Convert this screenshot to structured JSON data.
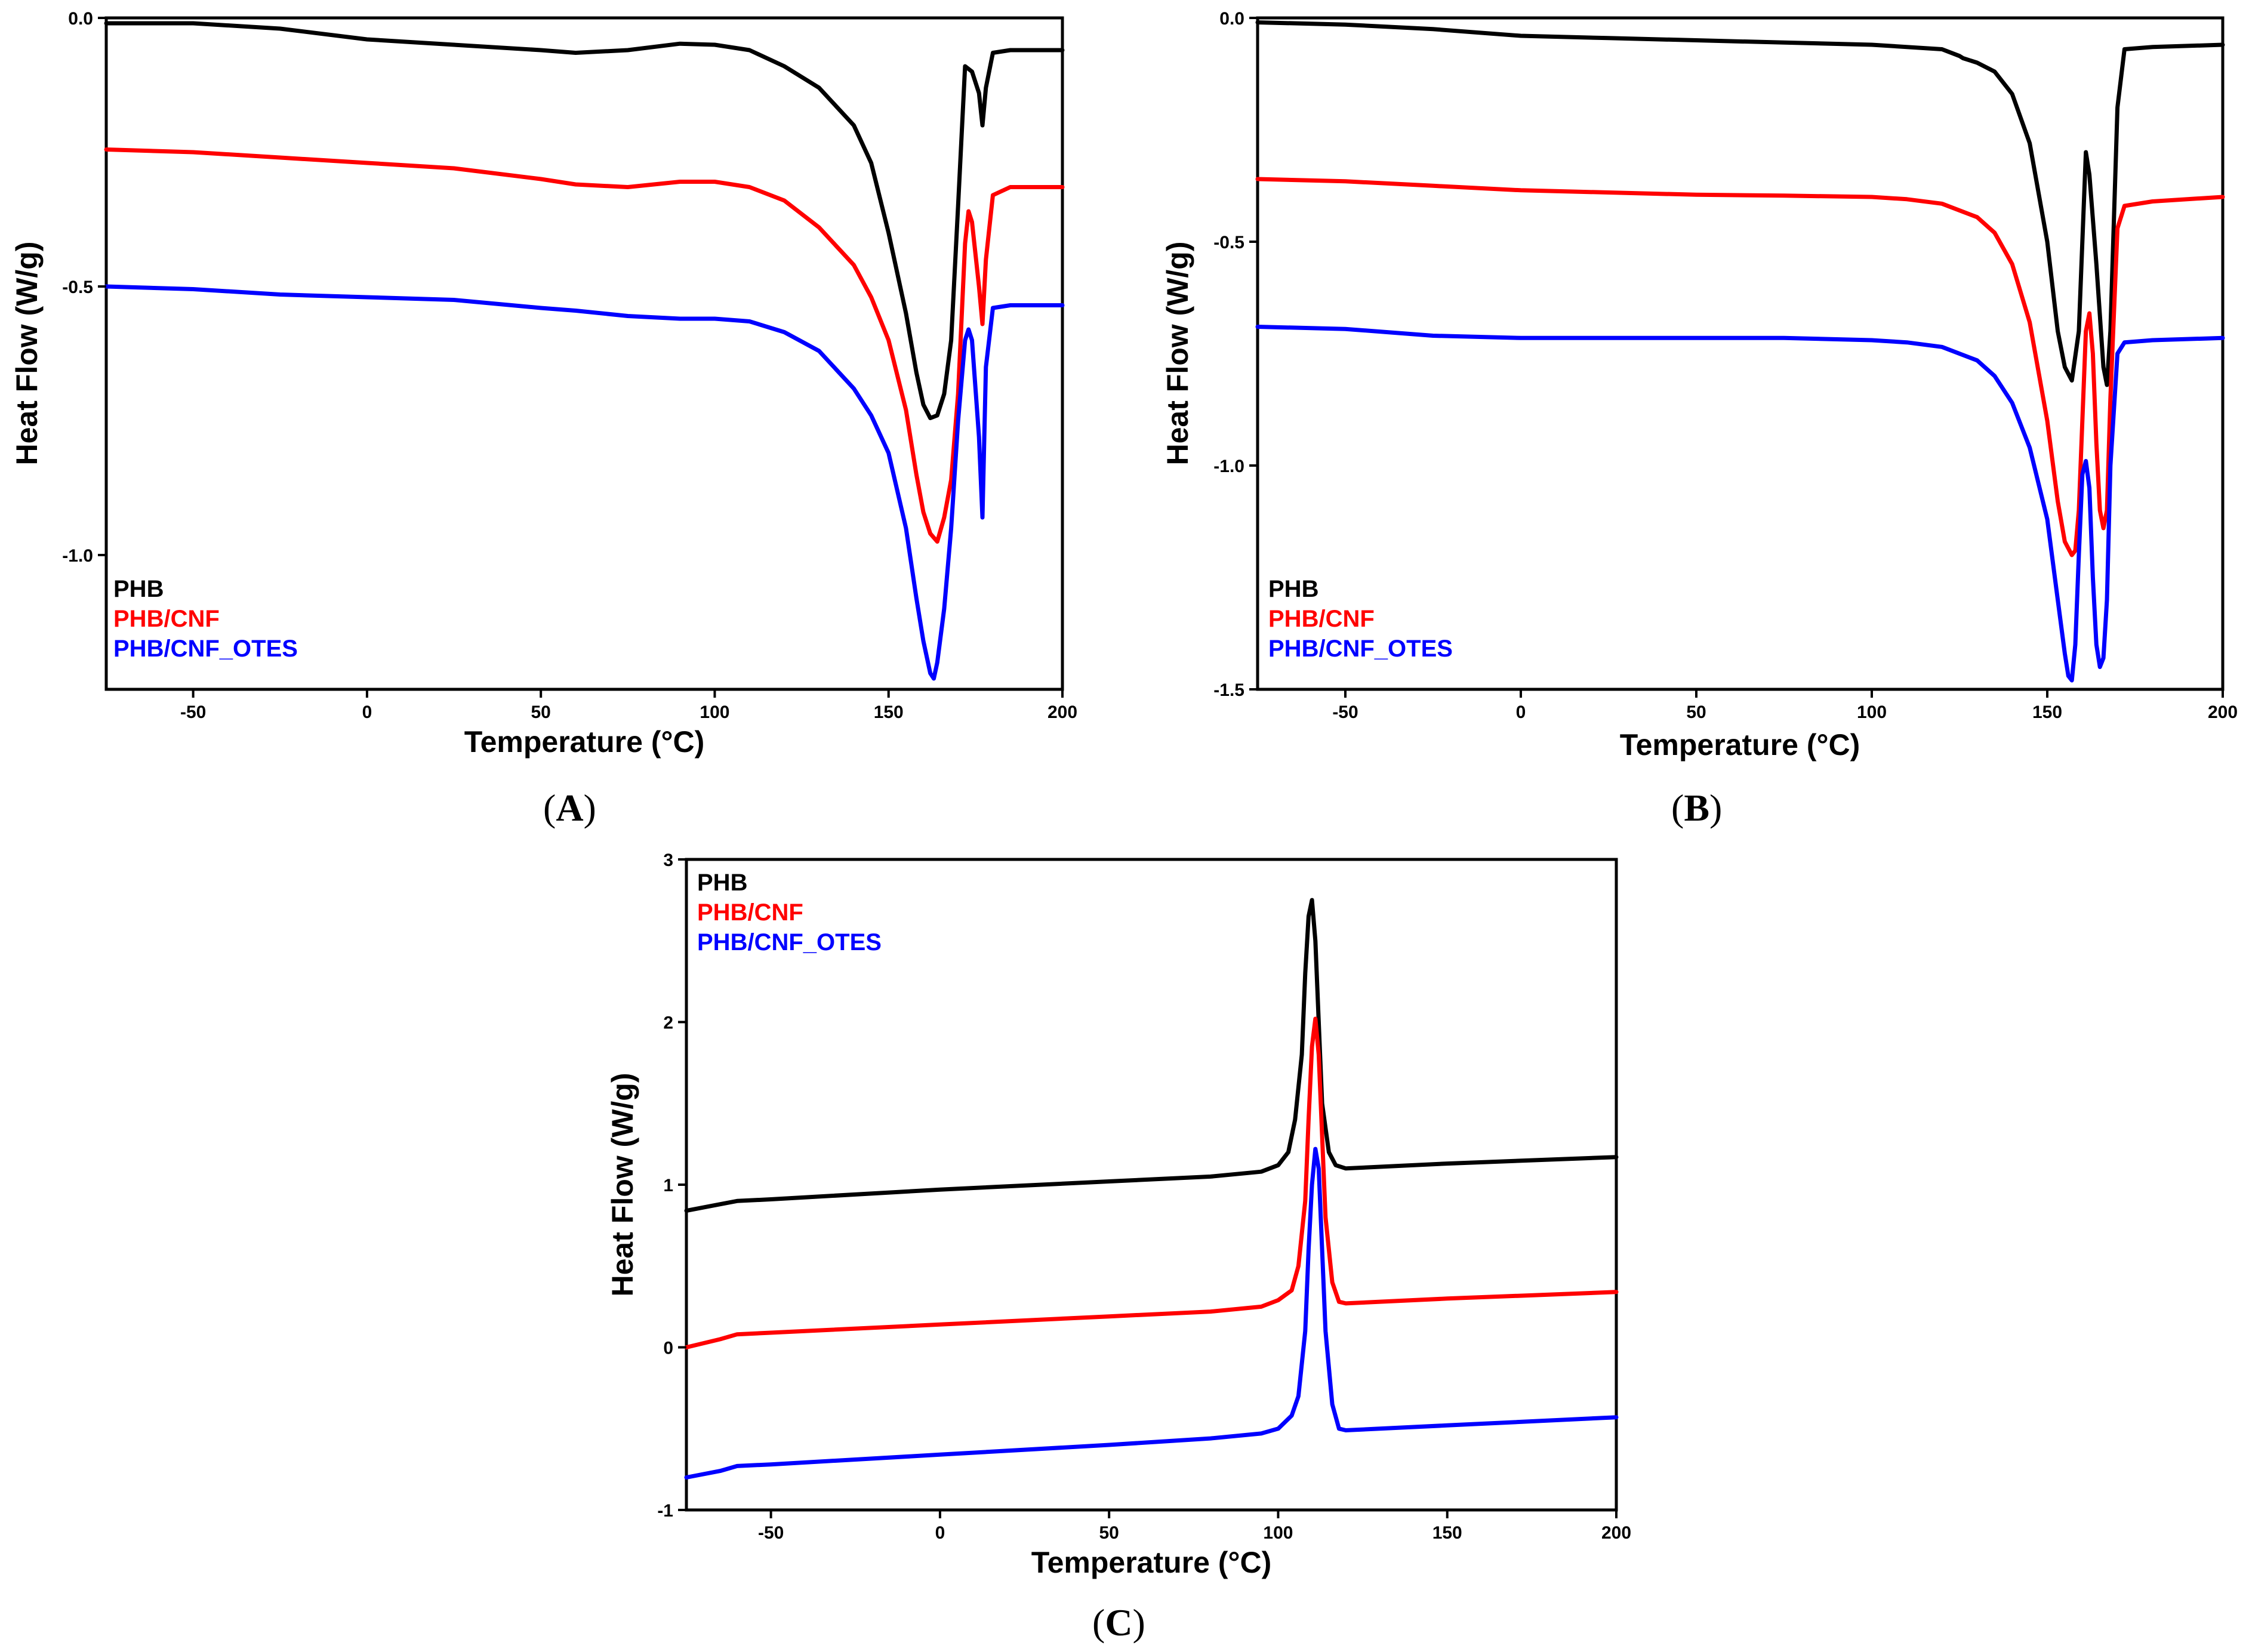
{
  "colors": {
    "PHB": "#000000",
    "PHB/CNF": "#ff0000",
    "PHB/CNF_OTES": "#0000ff"
  },
  "chart_data": [
    {
      "type": "line",
      "panel_label": "A",
      "xlabel": "Temperature (°C)",
      "ylabel": "Heat Flow (W/g)",
      "xlim": [
        -75,
        200
      ],
      "ylim": [
        -1.25,
        0
      ],
      "xticks": [
        -50,
        0,
        50,
        100,
        150,
        200
      ],
      "xtick_labels": [
        "-50",
        "0",
        "50",
        "100",
        "150",
        "200"
      ],
      "yticks": [
        0,
        -0.5,
        -1.0
      ],
      "ytick_labels": [
        "0.0",
        "-0.5",
        "-1.0"
      ],
      "legend": [
        "PHB",
        "PHB/CNF",
        "PHB/CNF_OTES"
      ],
      "legend_position": "bottom-left",
      "series": [
        {
          "name": "PHB",
          "x": [
            -75,
            -50,
            -25,
            0,
            25,
            50,
            60,
            75,
            90,
            100,
            110,
            120,
            130,
            140,
            145,
            150,
            155,
            158,
            160,
            162,
            164,
            166,
            168,
            170,
            172,
            174,
            176,
            177,
            178,
            180,
            185,
            200
          ],
          "y": [
            -0.01,
            -0.01,
            -0.02,
            -0.04,
            -0.05,
            -0.06,
            -0.065,
            -0.06,
            -0.048,
            -0.05,
            -0.06,
            -0.09,
            -0.13,
            -0.2,
            -0.27,
            -0.4,
            -0.55,
            -0.66,
            -0.72,
            -0.745,
            -0.74,
            -0.7,
            -0.6,
            -0.35,
            -0.09,
            -0.1,
            -0.14,
            -0.2,
            -0.13,
            -0.065,
            -0.06,
            -0.06
          ]
        },
        {
          "name": "PHB/CNF",
          "x": [
            -75,
            -50,
            -25,
            0,
            25,
            50,
            60,
            75,
            90,
            100,
            110,
            120,
            130,
            140,
            145,
            150,
            155,
            158,
            160,
            162,
            164,
            166,
            168,
            170,
            172,
            173,
            174,
            176,
            177,
            178,
            180,
            185,
            200
          ],
          "y": [
            -0.245,
            -0.25,
            -0.26,
            -0.27,
            -0.28,
            -0.3,
            -0.31,
            -0.315,
            -0.305,
            -0.305,
            -0.315,
            -0.34,
            -0.39,
            -0.46,
            -0.52,
            -0.6,
            -0.73,
            -0.85,
            -0.92,
            -0.96,
            -0.975,
            -0.93,
            -0.86,
            -0.7,
            -0.42,
            -0.36,
            -0.38,
            -0.5,
            -0.57,
            -0.45,
            -0.33,
            -0.315,
            -0.315
          ]
        },
        {
          "name": "PHB/CNF_OTES",
          "x": [
            -75,
            -50,
            -25,
            0,
            25,
            50,
            60,
            75,
            90,
            100,
            110,
            120,
            130,
            140,
            145,
            150,
            155,
            158,
            160,
            162,
            163,
            164,
            166,
            168,
            170,
            172,
            173,
            174,
            176,
            177,
            178,
            180,
            185,
            200
          ],
          "y": [
            -0.5,
            -0.505,
            -0.515,
            -0.52,
            -0.525,
            -0.54,
            -0.545,
            -0.555,
            -0.56,
            -0.56,
            -0.565,
            -0.585,
            -0.62,
            -0.69,
            -0.74,
            -0.81,
            -0.95,
            -1.08,
            -1.16,
            -1.22,
            -1.23,
            -1.2,
            -1.1,
            -0.95,
            -0.75,
            -0.6,
            -0.58,
            -0.6,
            -0.78,
            -0.93,
            -0.65,
            -0.54,
            -0.535,
            -0.535
          ]
        }
      ]
    },
    {
      "type": "line",
      "panel_label": "B",
      "xlabel": "Temperature (°C)",
      "ylabel": "Heat Flow (W/g)",
      "xlim": [
        -75,
        200
      ],
      "ylim": [
        -1.5,
        0
      ],
      "xticks": [
        -50,
        0,
        50,
        100,
        150,
        200
      ],
      "xtick_labels": [
        "-50",
        "0",
        "50",
        "100",
        "150",
        "200"
      ],
      "yticks": [
        0,
        -0.5,
        -1.0,
        -1.5
      ],
      "ytick_labels": [
        "0.0",
        "-0.5",
        "-1.0",
        "-1.5"
      ],
      "legend": [
        "PHB",
        "PHB/CNF",
        "PHB/CNF_OTES"
      ],
      "legend_position": "bottom-left",
      "series": [
        {
          "name": "PHB",
          "x": [
            -75,
            -50,
            -25,
            0,
            25,
            50,
            75,
            100,
            120,
            125,
            126,
            130,
            135,
            140,
            145,
            150,
            153,
            155,
            157,
            159,
            161,
            162,
            164,
            166,
            167,
            168,
            170,
            172,
            180,
            200
          ],
          "y": [
            -0.01,
            -0.015,
            -0.025,
            -0.04,
            -0.045,
            -0.05,
            -0.055,
            -0.06,
            -0.07,
            -0.085,
            -0.09,
            -0.1,
            -0.12,
            -0.17,
            -0.28,
            -0.5,
            -0.7,
            -0.78,
            -0.81,
            -0.7,
            -0.3,
            -0.35,
            -0.55,
            -0.78,
            -0.82,
            -0.7,
            -0.2,
            -0.07,
            -0.065,
            -0.06
          ]
        },
        {
          "name": "PHB/CNF",
          "x": [
            -75,
            -50,
            -25,
            0,
            25,
            50,
            75,
            100,
            110,
            120,
            130,
            135,
            140,
            145,
            150,
            153,
            155,
            157,
            158,
            159,
            160,
            161,
            162,
            163,
            164,
            165,
            166,
            167,
            168,
            170,
            172,
            180,
            200
          ],
          "y": [
            -0.36,
            -0.365,
            -0.375,
            -0.385,
            -0.39,
            -0.395,
            -0.397,
            -0.4,
            -0.405,
            -0.415,
            -0.445,
            -0.48,
            -0.55,
            -0.68,
            -0.9,
            -1.08,
            -1.17,
            -1.2,
            -1.19,
            -1.1,
            -0.9,
            -0.7,
            -0.66,
            -0.75,
            -0.95,
            -1.1,
            -1.14,
            -1.1,
            -0.85,
            -0.47,
            -0.42,
            -0.41,
            -0.4
          ]
        },
        {
          "name": "PHB/CNF_OTES",
          "x": [
            -75,
            -50,
            -25,
            0,
            25,
            50,
            75,
            100,
            110,
            120,
            130,
            135,
            140,
            145,
            150,
            153,
            155,
            156,
            157,
            158,
            159,
            160,
            161,
            162,
            163,
            164,
            165,
            166,
            167,
            168,
            170,
            172,
            180,
            200
          ],
          "y": [
            -0.69,
            -0.695,
            -0.71,
            -0.715,
            -0.715,
            -0.715,
            -0.715,
            -0.72,
            -0.725,
            -0.735,
            -0.765,
            -0.8,
            -0.86,
            -0.96,
            -1.12,
            -1.3,
            -1.42,
            -1.47,
            -1.48,
            -1.4,
            -1.2,
            -1.02,
            -0.99,
            -1.05,
            -1.25,
            -1.4,
            -1.45,
            -1.43,
            -1.3,
            -1.0,
            -0.75,
            -0.725,
            -0.72,
            -0.715
          ]
        }
      ]
    },
    {
      "type": "line",
      "panel_label": "C",
      "xlabel": "Temperature (°C)",
      "ylabel": "Heat Flow (W/g)",
      "xlim": [
        -75,
        200
      ],
      "ylim": [
        -1,
        3
      ],
      "xticks": [
        -50,
        0,
        50,
        100,
        150,
        200
      ],
      "xtick_labels": [
        "-50",
        "0",
        "50",
        "100",
        "150",
        "200"
      ],
      "yticks": [
        3,
        2,
        1,
        0,
        -1
      ],
      "ytick_labels": [
        "3",
        "2",
        "1",
        "0",
        "-1"
      ],
      "legend": [
        "PHB",
        "PHB/CNF",
        "PHB/CNF_OTES"
      ],
      "legend_position": "top-left",
      "series": [
        {
          "name": "PHB",
          "x": [
            -75,
            -65,
            -60,
            -50,
            0,
            50,
            80,
            95,
            100,
            103,
            105,
            107,
            108,
            109,
            110,
            111,
            112,
            113,
            115,
            117,
            120,
            150,
            200
          ],
          "y": [
            0.84,
            0.88,
            0.9,
            0.91,
            0.97,
            1.02,
            1.05,
            1.08,
            1.12,
            1.2,
            1.4,
            1.8,
            2.3,
            2.65,
            2.75,
            2.5,
            2.0,
            1.5,
            1.2,
            1.12,
            1.1,
            1.13,
            1.17
          ]
        },
        {
          "name": "PHB/CNF",
          "x": [
            -75,
            -65,
            -60,
            -50,
            0,
            50,
            80,
            95,
            100,
            104,
            106,
            108,
            109,
            110,
            111,
            112,
            113,
            114,
            116,
            118,
            120,
            150,
            200
          ],
          "y": [
            0.0,
            0.05,
            0.08,
            0.09,
            0.14,
            0.19,
            0.22,
            0.25,
            0.29,
            0.35,
            0.5,
            0.9,
            1.4,
            1.85,
            2.02,
            1.8,
            1.3,
            0.8,
            0.4,
            0.28,
            0.27,
            0.3,
            0.34
          ]
        },
        {
          "name": "PHB/CNF_OTES",
          "x": [
            -75,
            -65,
            -60,
            -50,
            0,
            50,
            80,
            95,
            100,
            104,
            106,
            108,
            109,
            110,
            111,
            112,
            113,
            114,
            116,
            118,
            120,
            150,
            200
          ],
          "y": [
            -0.8,
            -0.76,
            -0.73,
            -0.72,
            -0.66,
            -0.6,
            -0.56,
            -0.53,
            -0.5,
            -0.42,
            -0.3,
            0.1,
            0.6,
            1.0,
            1.22,
            1.1,
            0.6,
            0.1,
            -0.35,
            -0.5,
            -0.51,
            -0.48,
            -0.43
          ]
        }
      ]
    }
  ]
}
